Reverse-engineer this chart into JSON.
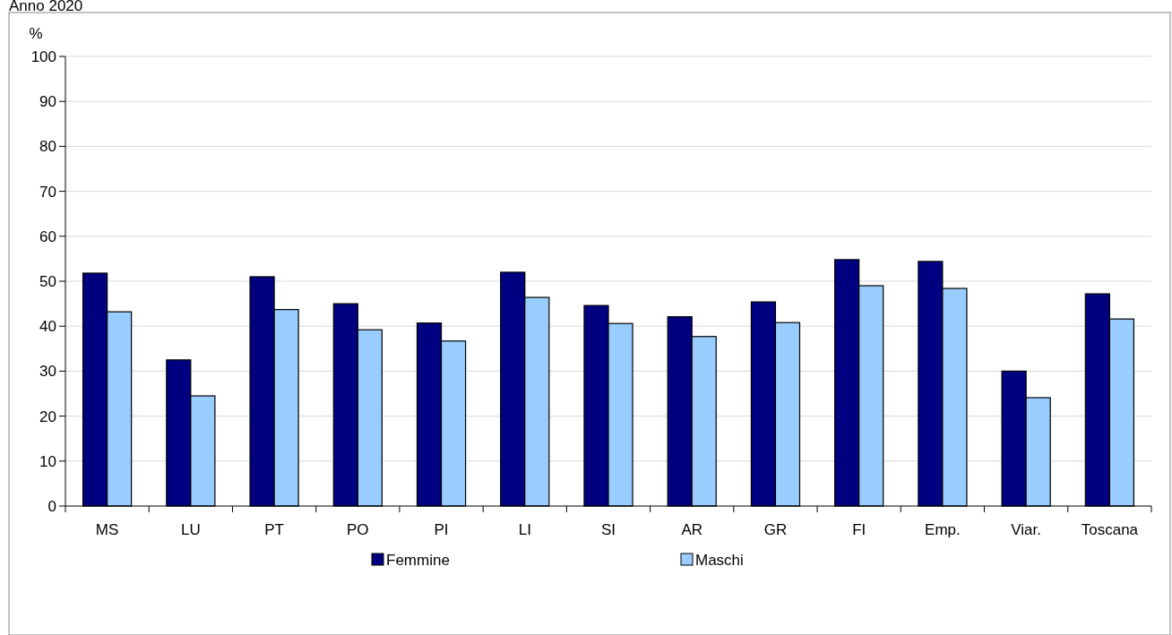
{
  "chart_data": {
    "type": "bar",
    "title": "Anno 2020",
    "ylabel": "%",
    "categories": [
      "MS",
      "LU",
      "PT",
      "PO",
      "PI",
      "LI",
      "SI",
      "AR",
      "GR",
      "FI",
      "Emp.",
      "Viar.",
      "Toscana"
    ],
    "series": [
      {
        "name": "Femmine",
        "color": "#000080",
        "values": [
          51.8,
          32.5,
          51.0,
          45.0,
          40.7,
          52.0,
          44.6,
          42.1,
          45.4,
          54.8,
          54.4,
          30.0,
          47.2
        ]
      },
      {
        "name": "Maschi",
        "color": "#99ccff",
        "values": [
          43.2,
          24.5,
          43.7,
          39.2,
          36.7,
          46.4,
          40.6,
          37.7,
          40.8,
          49.0,
          48.4,
          24.1,
          41.6
        ]
      }
    ],
    "ylim": [
      0,
      100
    ],
    "yticks": [
      0,
      10,
      20,
      30,
      40,
      50,
      60,
      70,
      80,
      90,
      100
    ],
    "grid": "y",
    "legend": "bottom"
  }
}
